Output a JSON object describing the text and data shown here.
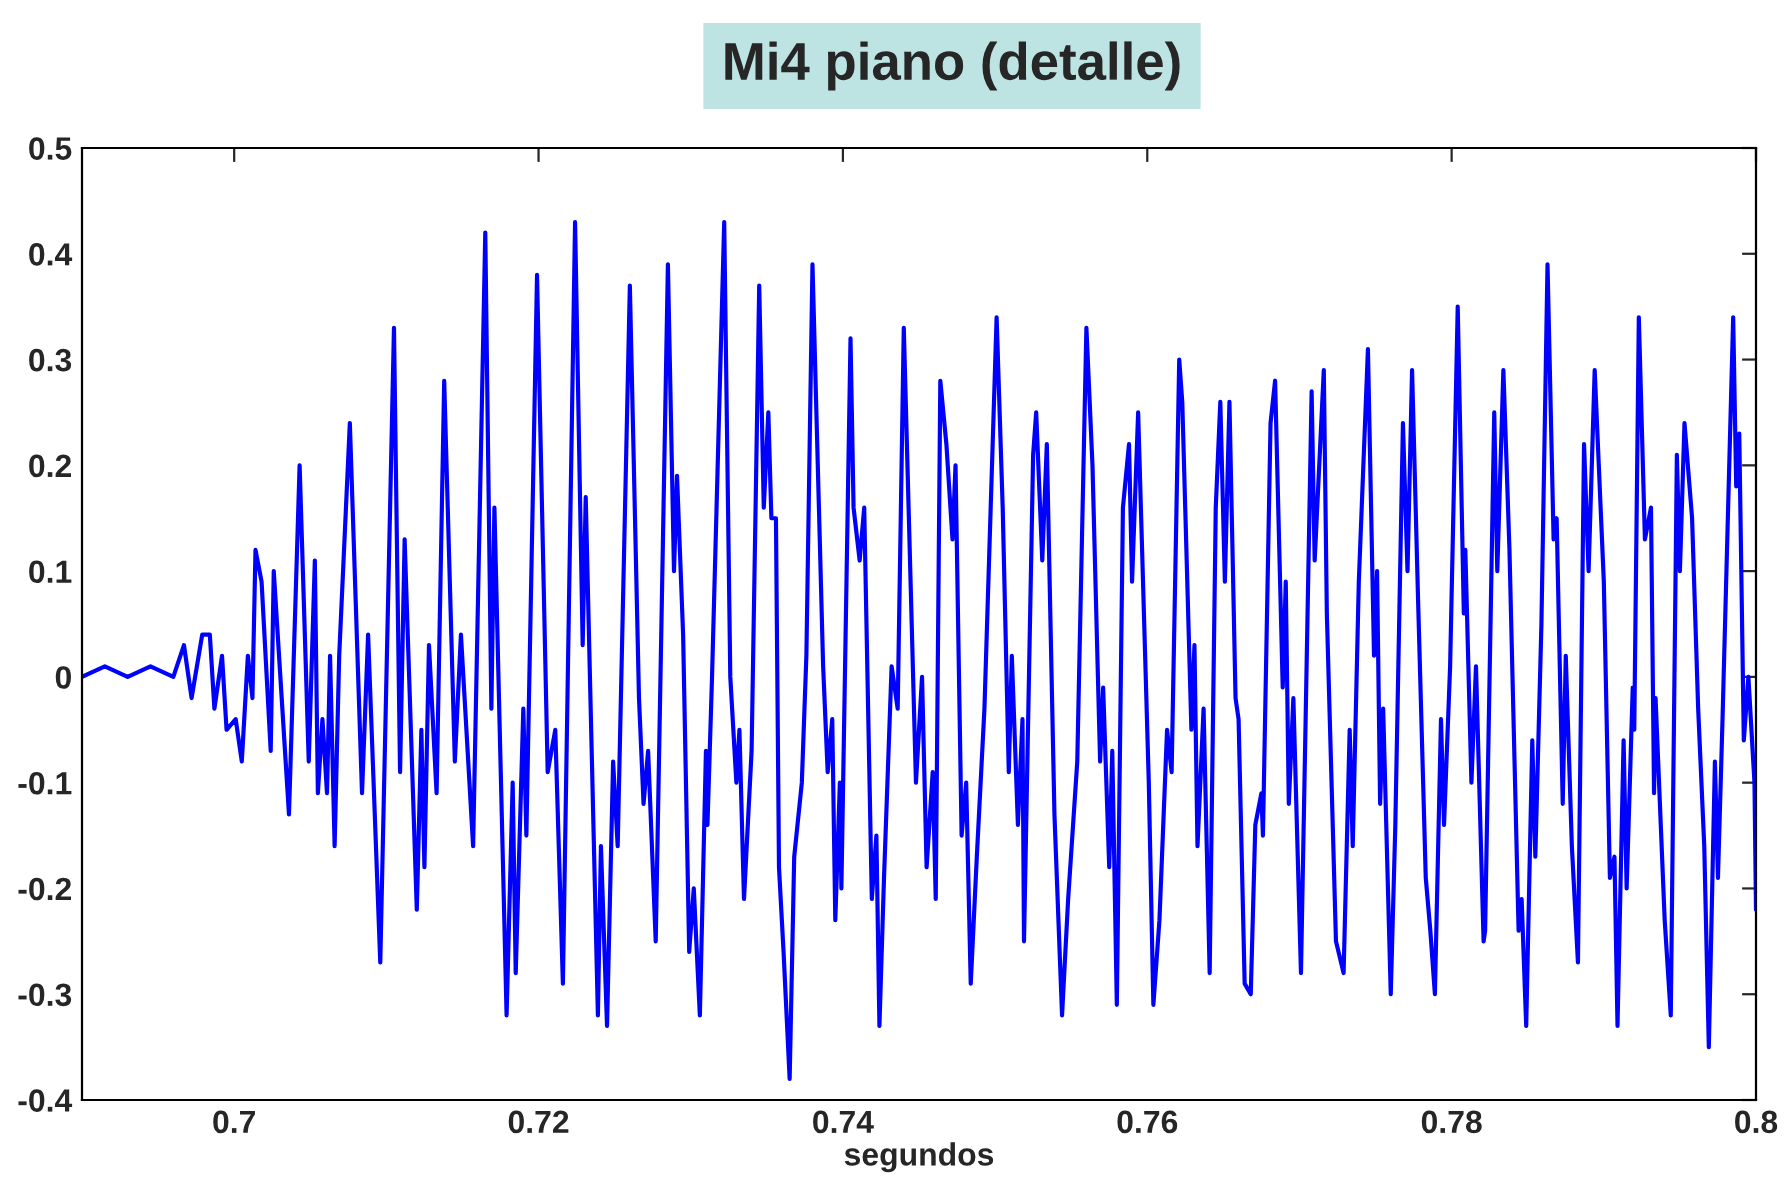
{
  "chart_data": {
    "type": "line",
    "title": "Mi4 piano (detalle)",
    "xlabel": "segundos",
    "xlim": [
      0.69,
      0.8
    ],
    "ylim": [
      -0.4,
      0.5
    ],
    "xticks": [
      0.7,
      0.72,
      0.74,
      0.76,
      0.78,
      0.8
    ],
    "yticks": [
      -0.4,
      -0.3,
      -0.2,
      -0.1,
      0,
      0.1,
      0.2,
      0.3,
      0.4,
      0.5
    ],
    "grid": false,
    "marker": "none",
    "line_style": "solid",
    "series": [
      {
        "color": "#0000ff",
        "x": [
          0.69,
          0.6915,
          0.693,
          0.6945,
          0.696,
          0.6967,
          0.6972,
          0.6979,
          0.6984,
          0.6987,
          0.6992,
          0.6995,
          0.7001,
          0.7005,
          0.7009,
          0.7012,
          0.7014,
          0.7018,
          0.7024,
          0.7026,
          0.7036,
          0.7043,
          0.7049,
          0.7053,
          0.7055,
          0.7058,
          0.7061,
          0.7063,
          0.7066,
          0.7069,
          0.7076,
          0.7084,
          0.7088,
          0.7096,
          0.7105,
          0.7109,
          0.7112,
          0.712,
          0.7123,
          0.7125,
          0.7128,
          0.7133,
          0.7138,
          0.7145,
          0.7149,
          0.7157,
          0.7165,
          0.7169,
          0.7171,
          0.7179,
          0.7183,
          0.7185,
          0.719,
          0.7192,
          0.7199,
          0.7206,
          0.7211,
          0.7216,
          0.7224,
          0.7229,
          0.7231,
          0.7239,
          0.7241,
          0.7245,
          0.7249,
          0.7252,
          0.726,
          0.7266,
          0.7269,
          0.7272,
          0.7277,
          0.7285,
          0.7289,
          0.7291,
          0.7295,
          0.7299,
          0.7302,
          0.7306,
          0.731,
          0.7311,
          0.7314,
          0.7322,
          0.7326,
          0.733,
          0.7332,
          0.7335,
          0.734,
          0.7345,
          0.7348,
          0.7351,
          0.7353,
          0.7356,
          0.7358,
          0.7361,
          0.7365,
          0.7368,
          0.7373,
          0.7376,
          0.738,
          0.7387,
          0.739,
          0.7393,
          0.7395,
          0.7398,
          0.7399,
          0.7405,
          0.7407,
          0.7411,
          0.7414,
          0.7419,
          0.7422,
          0.7424,
          0.7427,
          0.7432,
          0.7436,
          0.744,
          0.7448,
          0.7452,
          0.7455,
          0.7459,
          0.7461,
          0.7464,
          0.7468,
          0.7472,
          0.7474,
          0.7478,
          0.7481,
          0.7484,
          0.7488,
          0.7493,
          0.7501,
          0.7505,
          0.7509,
          0.7511,
          0.7515,
          0.7518,
          0.7519,
          0.7525,
          0.7527,
          0.7531,
          0.7534,
          0.7539,
          0.7544,
          0.7548,
          0.7554,
          0.756,
          0.7564,
          0.7569,
          0.7571,
          0.7575,
          0.7577,
          0.758,
          0.7584,
          0.7588,
          0.759,
          0.7594,
          0.7601,
          0.7604,
          0.7608,
          0.7613,
          0.7616,
          0.7621,
          0.7623,
          0.7629,
          0.7631,
          0.7633,
          0.7637,
          0.7641,
          0.7645,
          0.7648,
          0.7651,
          0.7654,
          0.7658,
          0.766,
          0.7664,
          0.7668,
          0.7671,
          0.7675,
          0.7676,
          0.7681,
          0.7684,
          0.7689,
          0.7691,
          0.7693,
          0.7696,
          0.7701,
          0.7708,
          0.771,
          0.7716,
          0.7718,
          0.7724,
          0.7729,
          0.7733,
          0.7735,
          0.7739,
          0.7745,
          0.7749,
          0.7751,
          0.7753,
          0.7755,
          0.776,
          0.7763,
          0.7768,
          0.7771,
          0.7774,
          0.7778,
          0.7783,
          0.7786,
          0.7789,
          0.7793,
          0.7795,
          0.7799,
          0.7804,
          0.7808,
          0.7809,
          0.7813,
          0.7816,
          0.7821,
          0.7822,
          0.7828,
          0.783,
          0.7834,
          0.7838,
          0.7844,
          0.7846,
          0.7849,
          0.7853,
          0.7855,
          0.7859,
          0.7863,
          0.7867,
          0.7869,
          0.7873,
          0.7875,
          0.7879,
          0.7883,
          0.7887,
          0.789,
          0.7894,
          0.79,
          0.7904,
          0.7907,
          0.7909,
          0.7913,
          0.7915,
          0.7919,
          0.792,
          0.7923,
          0.7927,
          0.7931,
          0.7933,
          0.7934,
          0.794,
          0.7944,
          0.7948,
          0.795,
          0.7953,
          0.7958,
          0.7962,
          0.7966,
          0.7969,
          0.7973,
          0.7975,
          0.7978,
          0.7985,
          0.7987,
          0.7989,
          0.7992,
          0.7995,
          0.7999,
          0.8
        ],
        "values": [
          0,
          0.01,
          0,
          0.01,
          0,
          0.03,
          -0.02,
          0.04,
          0.04,
          -0.03,
          0.02,
          -0.05,
          -0.04,
          -0.08,
          0.02,
          -0.02,
          0.12,
          0.09,
          -0.07,
          0.1,
          -0.13,
          0.2,
          -0.08,
          0.11,
          -0.11,
          -0.04,
          -0.11,
          0.02,
          -0.16,
          0.02,
          0.24,
          -0.11,
          0.04,
          -0.27,
          0.33,
          -0.09,
          0.13,
          -0.22,
          -0.05,
          -0.18,
          0.03,
          -0.11,
          0.28,
          -0.08,
          0.04,
          -0.16,
          0.42,
          -0.03,
          0.16,
          -0.32,
          -0.1,
          -0.28,
          -0.03,
          -0.15,
          0.38,
          -0.09,
          -0.05,
          -0.29,
          0.43,
          0.03,
          0.17,
          -0.32,
          -0.16,
          -0.33,
          -0.08,
          -0.16,
          0.37,
          -0.02,
          -0.12,
          -0.07,
          -0.25,
          0.39,
          0.1,
          0.19,
          0.04,
          -0.26,
          -0.2,
          -0.32,
          -0.07,
          -0.14,
          0,
          0.43,
          0,
          -0.1,
          -0.05,
          -0.21,
          -0.07,
          0.37,
          0.16,
          0.25,
          0.15,
          0.15,
          -0.18,
          -0.26,
          -0.38,
          -0.17,
          -0.1,
          0.02,
          0.39,
          0.01,
          -0.09,
          -0.04,
          -0.23,
          -0.1,
          -0.2,
          0.32,
          0.16,
          0.11,
          0.16,
          -0.21,
          -0.15,
          -0.33,
          -0.19,
          0.01,
          -0.03,
          0.33,
          -0.1,
          0,
          -0.18,
          -0.09,
          -0.21,
          0.28,
          0.22,
          0.13,
          0.2,
          -0.15,
          -0.1,
          -0.29,
          -0.17,
          -0.03,
          0.34,
          0.16,
          -0.09,
          0.02,
          -0.14,
          -0.04,
          -0.25,
          0.21,
          0.25,
          0.11,
          0.22,
          -0.13,
          -0.32,
          -0.21,
          -0.08,
          0.33,
          0.2,
          -0.08,
          -0.01,
          -0.18,
          -0.07,
          -0.31,
          0.16,
          0.22,
          0.09,
          0.25,
          -0.1,
          -0.31,
          -0.23,
          -0.05,
          -0.09,
          0.3,
          0.26,
          -0.05,
          0.03,
          -0.16,
          -0.03,
          -0.28,
          0.16,
          0.26,
          0.09,
          0.26,
          -0.02,
          -0.04,
          -0.29,
          -0.3,
          -0.14,
          -0.11,
          -0.15,
          0.24,
          0.28,
          -0.01,
          0.09,
          -0.12,
          -0.02,
          -0.28,
          0.27,
          0.11,
          0.29,
          0.06,
          -0.25,
          -0.28,
          -0.05,
          -0.16,
          0.09,
          0.31,
          0.02,
          0.1,
          -0.12,
          -0.03,
          -0.3,
          -0.14,
          0.24,
          0.1,
          0.29,
          0.07,
          -0.19,
          -0.24,
          -0.3,
          -0.04,
          -0.14,
          0.01,
          0.35,
          0.06,
          0.12,
          -0.1,
          0.01,
          -0.25,
          -0.24,
          0.25,
          0.1,
          0.29,
          0.12,
          -0.24,
          -0.21,
          -0.33,
          -0.06,
          -0.17,
          0.05,
          0.39,
          0.13,
          0.15,
          -0.12,
          0.02,
          -0.16,
          -0.27,
          0.22,
          0.1,
          0.29,
          0.09,
          -0.19,
          -0.17,
          -0.33,
          -0.06,
          -0.2,
          -0.01,
          -0.05,
          0.34,
          0.13,
          0.16,
          -0.11,
          -0.02,
          -0.23,
          -0.32,
          0.21,
          0.1,
          0.24,
          0.15,
          -0.03,
          -0.16,
          -0.35,
          -0.08,
          -0.19,
          -0.04,
          0.34,
          0.18,
          0.23,
          -0.06,
          0,
          -0.1,
          -0.22
        ]
      }
    ]
  }
}
